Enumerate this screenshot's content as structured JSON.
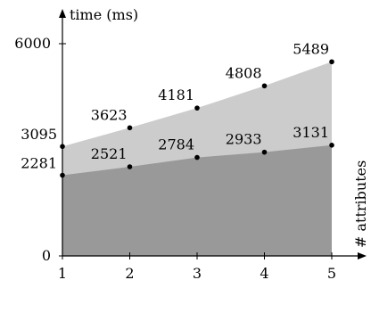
{
  "chart_data": {
    "type": "area",
    "title": "",
    "xlabel": "# attributes",
    "ylabel": "time (ms)",
    "x": [
      1,
      2,
      3,
      4,
      5
    ],
    "xticks": [
      "1",
      "2",
      "3",
      "4",
      "5"
    ],
    "yticks": [
      "0",
      "6000"
    ],
    "ylim": [
      0,
      6000
    ],
    "stacked_cumulative": true,
    "series": [
      {
        "values": [
          2281,
          2521,
          2784,
          2933,
          3131
        ],
        "color": "#999999"
      },
      {
        "values": [
          3095,
          3623,
          4181,
          4808,
          5489
        ],
        "color": "#cccccc"
      }
    ],
    "data_labels": [
      [
        "2281",
        "2521",
        "2784",
        "2933",
        "3131"
      ],
      [
        "3095",
        "3623",
        "4181",
        "4808",
        "5489"
      ]
    ],
    "grid": false,
    "legend": "none"
  }
}
